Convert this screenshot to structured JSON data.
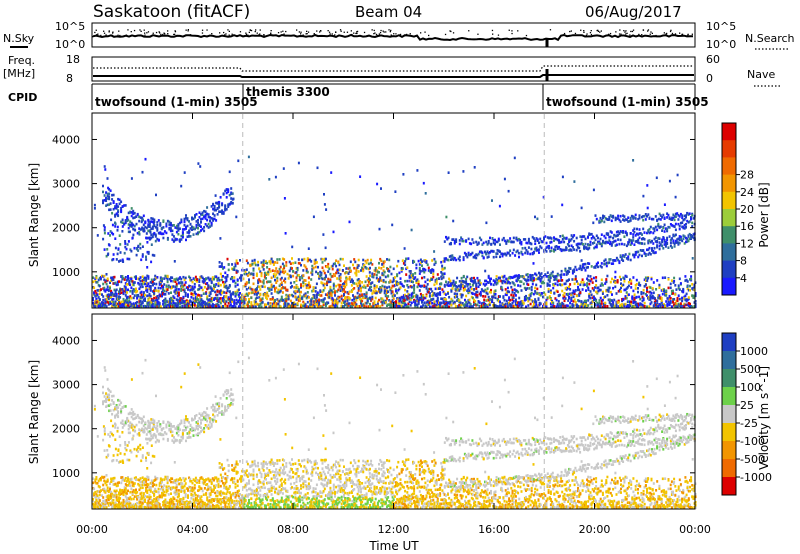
{
  "header": {
    "station": "Saskatoon (fitACF)",
    "beam": "Beam 04",
    "date": "06/Aug/2017"
  },
  "noise_panel": {
    "left_label": "N.Sky",
    "left_ticks": [
      "10^5",
      "10^0"
    ],
    "right_label": "N.Search",
    "right_ticks": [
      "10^5",
      "10^0"
    ]
  },
  "freq_panel": {
    "left_label_1": "Freq.",
    "left_label_2": "[MHz]",
    "left_ticks": [
      "18",
      "8"
    ],
    "right_label": "Nave",
    "right_ticks": [
      "60",
      "0"
    ]
  },
  "cpid_panel": {
    "label": "CPID",
    "modes": [
      {
        "name": "twofsound (1-min) 3505",
        "start_hour": 0
      },
      {
        "name": "themis 3300",
        "start_hour": 6
      },
      {
        "name": "twofsound (1-min) 3505",
        "start_hour": 18
      }
    ]
  },
  "chart_data": [
    {
      "type": "heatmap",
      "panel": "power",
      "ylabel": "Slant Range [km]",
      "ytick_labels": [
        "1000",
        "2000",
        "3000",
        "4000"
      ],
      "y_ticks": [
        1000,
        2000,
        3000,
        4000
      ],
      "ylim": [
        180,
        4600
      ],
      "x_ticks": [
        0,
        4,
        8,
        12,
        16,
        20,
        24
      ],
      "xlim": [
        0,
        24
      ],
      "colorbar": {
        "label": "Power [dB]",
        "tick_labels": [
          "4",
          "8",
          "12",
          "16",
          "20",
          "24",
          "28"
        ],
        "colors": [
          "#1a1aff",
          "#1f3fc2",
          "#2f6e9c",
          "#3f8f6a",
          "#9ccd3a",
          "#f2c400",
          "#f29500",
          "#ef6a00",
          "#e63b00",
          "#dd0000"
        ]
      },
      "scatter_regions": [
        {
          "x_range": [
            0.2,
            5.6
          ],
          "shape": "u-arc",
          "range_km": [
            1700,
            2700
          ],
          "level": "low"
        },
        {
          "x_range": [
            0.0,
            24.0
          ],
          "shape": "near-range band",
          "range_km": [
            180,
            700
          ],
          "level": "mixed"
        },
        {
          "x_range": [
            14.0,
            24.0
          ],
          "shape": "slanted bands",
          "range_km": [
            700,
            2300
          ],
          "level": "low"
        }
      ]
    },
    {
      "type": "heatmap",
      "panel": "velocity",
      "ylabel": "Slant Range [km]",
      "ytick_labels": [
        "1000",
        "2000",
        "3000",
        "4000"
      ],
      "y_ticks": [
        1000,
        2000,
        3000,
        4000
      ],
      "ylim": [
        180,
        4600
      ],
      "x_ticks": [
        0,
        4,
        8,
        12,
        16,
        20,
        24
      ],
      "xlim": [
        0,
        24
      ],
      "colorbar": {
        "label": "Velocity [m s^-1]",
        "tick_labels": [
          "1000",
          "500",
          "100",
          "25",
          "-25",
          "-100",
          "-500",
          "-1000"
        ],
        "colors": [
          "#1f3fc2",
          "#2f6e9c",
          "#3f8f6a",
          "#6dd14a",
          "#c8c8c8",
          "#f2c400",
          "#f29500",
          "#ef6a00",
          "#dd0000"
        ]
      },
      "xlabel": "Time UT",
      "xtick_labels": [
        "00:00",
        "04:00",
        "08:00",
        "12:00",
        "16:00",
        "20:00",
        "00:00"
      ]
    }
  ]
}
